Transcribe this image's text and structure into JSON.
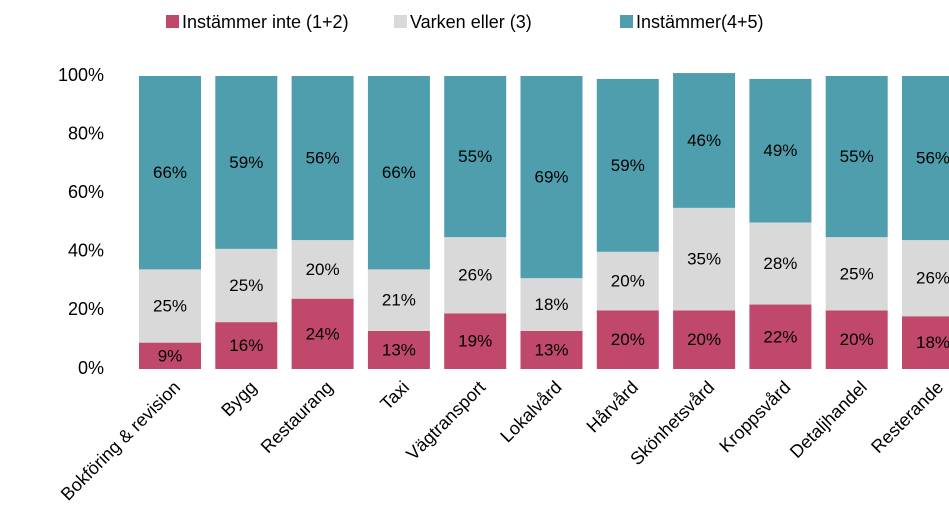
{
  "chart_data": {
    "type": "stacked_bar",
    "categories": [
      "Bokföring & revision",
      "Bygg",
      "Restaurang",
      "Taxi",
      "Vägtransport",
      "Lokalvård",
      "Hårvård",
      "Skönhetsvård",
      "Kroppsvård",
      "Detaljhandel",
      "Resterande"
    ],
    "series": [
      {
        "name": "Instämmer inte (1+2)",
        "color": "#c0496b",
        "values": [
          9,
          16,
          24,
          13,
          19,
          13,
          20,
          20,
          22,
          20,
          18
        ],
        "value_labels": [
          "9%",
          "16%",
          "24%",
          "13%",
          "19%",
          "13%",
          "20%",
          "20%",
          "22%",
          "20%",
          "18%"
        ]
      },
      {
        "name": "Varken eller (3)",
        "color": "#d9d9d9",
        "values": [
          25,
          25,
          20,
          21,
          26,
          18,
          20,
          35,
          28,
          25,
          26
        ],
        "value_labels": [
          "25%",
          "25%",
          "20%",
          "21%",
          "26%",
          "18%",
          "20%",
          "35%",
          "28%",
          "25%",
          "26%"
        ]
      },
      {
        "name": "Instämmer(4+5)",
        "color": "#4f9ead",
        "values": [
          66,
          59,
          56,
          66,
          55,
          69,
          59,
          46,
          49,
          55,
          56
        ],
        "value_labels": [
          "66%",
          "59%",
          "56%",
          "66%",
          "55%",
          "69%",
          "59%",
          "46%",
          "49%",
          "55%",
          "56%"
        ]
      }
    ],
    "ylim": [
      0,
      100
    ],
    "yticks": [
      {
        "value": 0,
        "label": "0%"
      },
      {
        "value": 20,
        "label": "20%"
      },
      {
        "value": 40,
        "label": "40%"
      },
      {
        "value": 60,
        "label": "60%"
      },
      {
        "value": 80,
        "label": "80%"
      },
      {
        "value": 100,
        "label": "100%"
      }
    ],
    "legend": "top"
  }
}
